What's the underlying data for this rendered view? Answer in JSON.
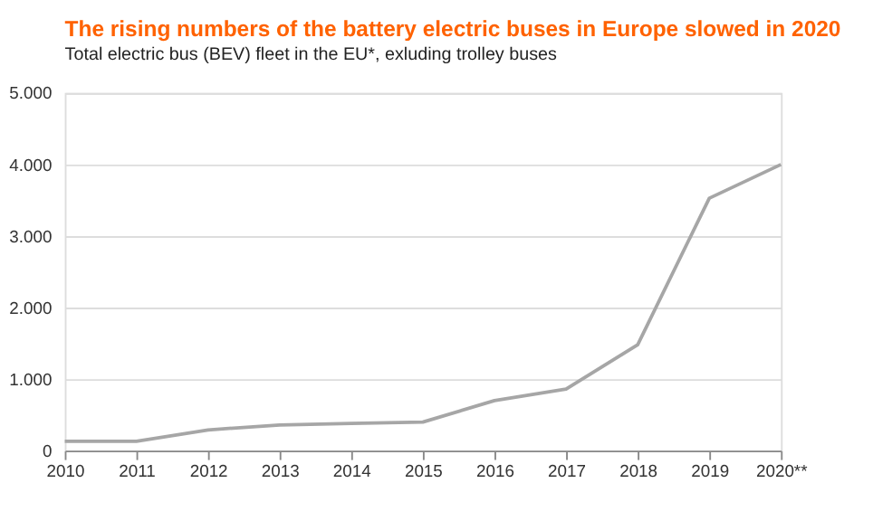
{
  "chart_data": {
    "type": "line",
    "title": "The rising numbers of the battery electric buses in Europe slowed in 2020",
    "subtitle": "Total electric bus (BEV) fleet in the EU*, exluding trolley buses",
    "categories": [
      "2010",
      "2011",
      "2012",
      "2013",
      "2014",
      "2015",
      "2016",
      "2017",
      "2018",
      "2019",
      "2020**"
    ],
    "series": [
      {
        "color": "#a6a6a6",
        "values": [
          130,
          130,
          290,
          360,
          380,
          400,
          700,
          860,
          1480,
          3530,
          4000
        ]
      }
    ],
    "ylim": [
      0,
      5000
    ],
    "yticks": [
      {
        "value": 0,
        "label": "0"
      },
      {
        "value": 1000,
        "label": "1.000"
      },
      {
        "value": 2000,
        "label": "2.000"
      },
      {
        "value": 3000,
        "label": "3.000"
      },
      {
        "value": 4000,
        "label": "4.000"
      },
      {
        "value": 5000,
        "label": "5.000"
      }
    ],
    "grid": "y",
    "marker": "none",
    "line_style": "solid"
  }
}
